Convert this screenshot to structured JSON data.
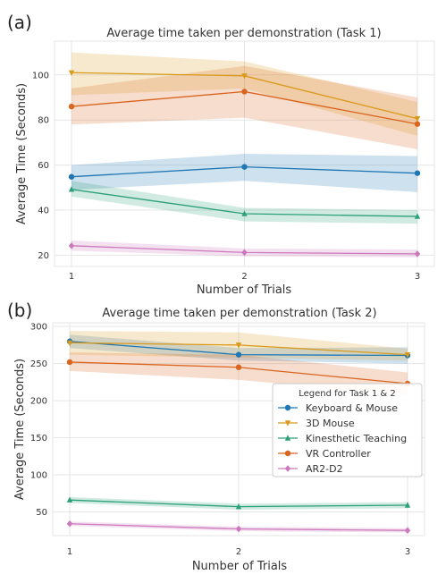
{
  "chart_data": [
    {
      "type": "line",
      "panel_letter": "(a)",
      "title": "Average time taken per demonstration (Task 1)",
      "xlabel": "Number of Trials",
      "ylabel": "Average Time (Seconds)",
      "x": [
        1,
        2,
        3
      ],
      "xticks": [
        "1",
        "2",
        "3"
      ],
      "yticks": [
        20,
        40,
        60,
        80,
        100
      ],
      "ylim": [
        15,
        115
      ],
      "grid": true,
      "shaded_bands": true,
      "series": [
        {
          "name": "Keyboard & Mouse",
          "color": "#1f77b4",
          "marker": "circle",
          "values": [
            54.8,
            59.2,
            56.4
          ],
          "lower": [
            49,
            53,
            48
          ],
          "upper": [
            60,
            65,
            64
          ]
        },
        {
          "name": "3D Mouse",
          "color": "#d99a1c",
          "marker": "triangle-down",
          "values": [
            101,
            99.6,
            80.6
          ],
          "lower": [
            91,
            94,
            73
          ],
          "upper": [
            110,
            106,
            88
          ]
        },
        {
          "name": "Kinesthetic Teaching",
          "color": "#2ca07a",
          "marker": "triangle-up",
          "values": [
            49.2,
            38.4,
            37.2
          ],
          "lower": [
            46,
            35,
            34
          ],
          "upper": [
            53,
            41,
            40
          ]
        },
        {
          "name": "VR Controller",
          "color": "#d9651e",
          "marker": "circle",
          "values": [
            86.0,
            92.6,
            78.2
          ],
          "lower": [
            78,
            81,
            67
          ],
          "upper": [
            94,
            104,
            90
          ]
        },
        {
          "name": "AR2-D2",
          "color": "#cc78bc",
          "marker": "diamond",
          "values": [
            24.2,
            21.2,
            20.6
          ],
          "lower": [
            22,
            19.5,
            19
          ],
          "upper": [
            26.5,
            23,
            22.5
          ]
        }
      ]
    },
    {
      "type": "line",
      "panel_letter": "(b)",
      "title": "Average time taken per demonstration (Task 2)",
      "xlabel": "Number of Trials",
      "ylabel": "Average Time (Seconds)",
      "x": [
        1,
        2,
        3
      ],
      "xticks": [
        "1",
        "2",
        "3"
      ],
      "yticks": [
        50,
        100,
        150,
        200,
        250,
        300
      ],
      "ylim": [
        18,
        305
      ],
      "grid": true,
      "shaded_bands": true,
      "legend_title": "Legend for Task 1 & 2",
      "legend_position": "center-right",
      "series": [
        {
          "name": "Keyboard & Mouse",
          "color": "#1f77b4",
          "marker": "circle",
          "values": [
            280,
            262,
            261
          ],
          "lower": [
            271,
            254,
            250
          ],
          "upper": [
            289,
            271,
            272
          ]
        },
        {
          "name": "3D Mouse",
          "color": "#d99a1c",
          "marker": "triangle-down",
          "values": [
            278,
            275,
            262
          ],
          "lower": [
            262,
            258,
            254
          ],
          "upper": [
            294,
            292,
            270
          ]
        },
        {
          "name": "Kinesthetic Teaching",
          "color": "#2ca07a",
          "marker": "triangle-up",
          "values": [
            66,
            57,
            59
          ],
          "lower": [
            62,
            53,
            55
          ],
          "upper": [
            70,
            61,
            63
          ]
        },
        {
          "name": "VR Controller",
          "color": "#d9651e",
          "marker": "circle",
          "values": [
            252,
            245,
            223
          ],
          "lower": [
            240,
            228,
            208
          ],
          "upper": [
            265,
            262,
            238
          ]
        },
        {
          "name": "AR2-D2",
          "color": "#cc78bc",
          "marker": "diamond",
          "values": [
            34,
            27,
            25
          ],
          "lower": [
            31,
            24,
            22
          ],
          "upper": [
            37,
            30,
            28
          ]
        }
      ]
    }
  ]
}
